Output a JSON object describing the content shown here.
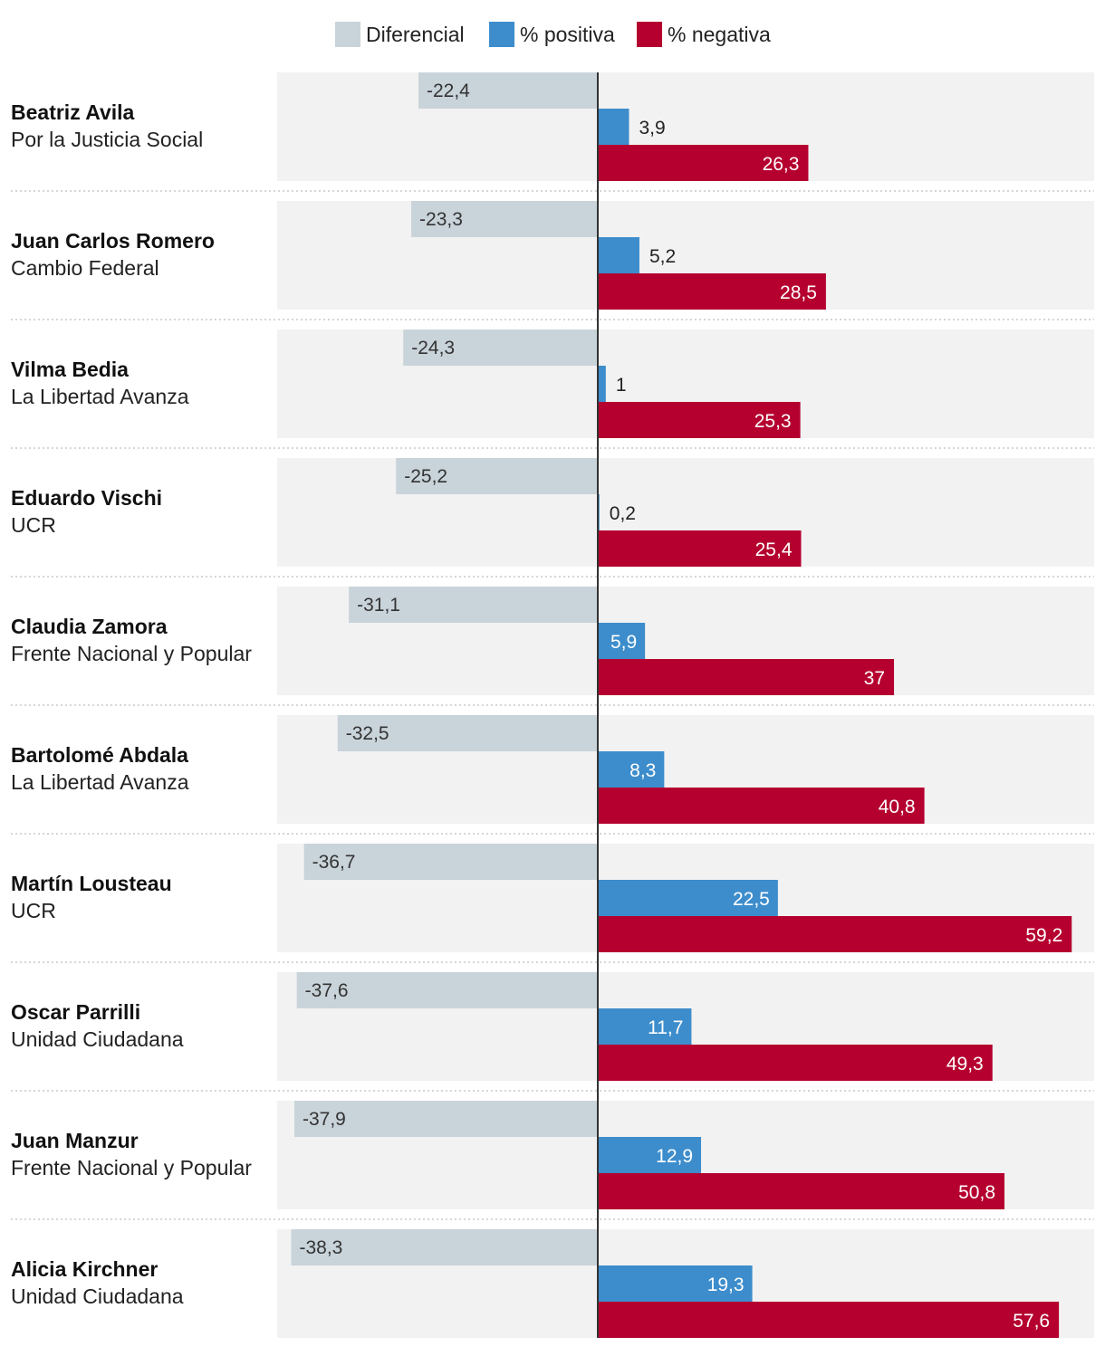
{
  "chart_data": {
    "type": "bar",
    "orientation": "horizontal",
    "title": "",
    "legend": [
      {
        "key": "diferencial",
        "label": "Diferencial",
        "color": "#c9d3da"
      },
      {
        "key": "positiva",
        "label": "% positiva",
        "color": "#3d8dcc"
      },
      {
        "key": "negativa",
        "label": "% negativa",
        "color": "#b5002f"
      }
    ],
    "xlim": [
      -40.5,
      62
    ],
    "rows": [
      {
        "name": "Beatriz Avila",
        "party": "Por la Justicia Social",
        "diferencial": -22.4,
        "diferencial_label": "-22,4",
        "positiva": 3.9,
        "positiva_label": "3,9",
        "negativa": 26.3,
        "negativa_label": "26,3"
      },
      {
        "name": "Juan Carlos Romero",
        "party": "Cambio Federal",
        "diferencial": -23.3,
        "diferencial_label": "-23,3",
        "positiva": 5.2,
        "positiva_label": "5,2",
        "negativa": 28.5,
        "negativa_label": "28,5"
      },
      {
        "name": "Vilma Bedia",
        "party": "La Libertad Avanza",
        "diferencial": -24.3,
        "diferencial_label": "-24,3",
        "positiva": 1,
        "positiva_label": "1",
        "negativa": 25.3,
        "negativa_label": "25,3"
      },
      {
        "name": "Eduardo Vischi",
        "party": "UCR",
        "diferencial": -25.2,
        "diferencial_label": "-25,2",
        "positiva": 0.2,
        "positiva_label": "0,2",
        "negativa": 25.4,
        "negativa_label": "25,4"
      },
      {
        "name": "Claudia Zamora",
        "party": "Frente Nacional y Popular",
        "diferencial": -31.1,
        "diferencial_label": "-31,1",
        "positiva": 5.9,
        "positiva_label": "5,9",
        "negativa": 37,
        "negativa_label": "37"
      },
      {
        "name": "Bartolomé Abdala",
        "party": "La Libertad Avanza",
        "diferencial": -32.5,
        "diferencial_label": "-32,5",
        "positiva": 8.3,
        "positiva_label": "8,3",
        "negativa": 40.8,
        "negativa_label": "40,8"
      },
      {
        "name": "Martín Lousteau",
        "party": "UCR",
        "diferencial": -36.7,
        "diferencial_label": "-36,7",
        "positiva": 22.5,
        "positiva_label": "22,5",
        "negativa": 59.2,
        "negativa_label": "59,2"
      },
      {
        "name": "Oscar Parrilli",
        "party": "Unidad Ciudadana",
        "diferencial": -37.6,
        "diferencial_label": "-37,6",
        "positiva": 11.7,
        "positiva_label": "11,7",
        "negativa": 49.3,
        "negativa_label": "49,3"
      },
      {
        "name": "Juan Manzur",
        "party": "Frente Nacional y Popular",
        "diferencial": -37.9,
        "diferencial_label": "-37,9",
        "positiva": 12.9,
        "positiva_label": "12,9",
        "negativa": 50.8,
        "negativa_label": "50,8"
      },
      {
        "name": "Alicia Kirchner",
        "party": "Unidad Ciudadana",
        "diferencial": -38.3,
        "diferencial_label": "-38,3",
        "positiva": 19.3,
        "positiva_label": "19,3",
        "negativa": 57.6,
        "negativa_label": "57,6"
      }
    ]
  }
}
